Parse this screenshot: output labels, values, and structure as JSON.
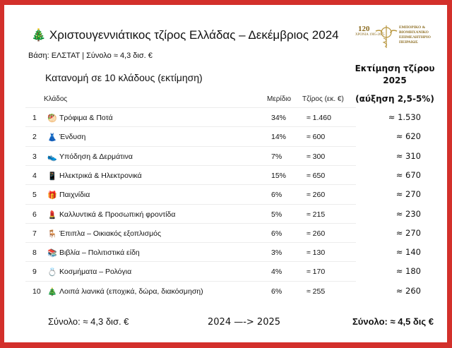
{
  "header": {
    "title_icon": "christmas-tree-icon",
    "title": "Χριστουγεννιάτικος τζίρος Ελλάδας – Δεκέμβριος 2024",
    "basis": "Βάση: ΕΛΣΤΑΤ | Σύνολο ≈ 4,3 δισ. €",
    "subtitle": "Κατανομή σε 10 κλάδους (εκτίμηση)"
  },
  "logo": {
    "number": "120",
    "years": "ΧΡΟΝΙΑ 1905-2025",
    "name": "ΕΜΠΟΡΙΚΟ & ΒΙΟΜΗΧΑΝΙΚΟ ΕΠΙΜΕΛΗΤΗΡΙΟ ΠΕΙΡΑΙΩΣ"
  },
  "columns": {
    "sector": "Κλάδος",
    "share": "Μερίδιο",
    "turnover": "Τζίρος (εκ. €)",
    "estimate_line1": "Εκτίμηση τζίρου",
    "estimate_line2": "2025",
    "estimate_growth": "(αύξηση 2,5-5%)"
  },
  "rows": [
    {
      "n": "1",
      "icon": "🥙",
      "icon_name": "food-icon",
      "name": "Τρόφιμα & Ποτά",
      "share": "34%",
      "turnover": "≈ 1.460",
      "estimate": "≈ 1.530"
    },
    {
      "n": "2",
      "icon": "👗",
      "icon_name": "dress-icon",
      "name": "Ένδυση",
      "share": "14%",
      "turnover": "≈ 600",
      "estimate": "≈ 620"
    },
    {
      "n": "3",
      "icon": "👟",
      "icon_name": "shoe-icon",
      "name": "Υπόδηση & Δερμάτινα",
      "share": "7%",
      "turnover": "≈ 300",
      "estimate": "≈ 310"
    },
    {
      "n": "4",
      "icon": "📱",
      "icon_name": "phone-icon",
      "name": "Ηλεκτρικά & Ηλεκτρονικά",
      "share": "15%",
      "turnover": "≈ 650",
      "estimate": "≈ 670"
    },
    {
      "n": "5",
      "icon": "🎁",
      "icon_name": "gift-icon",
      "name": "Παιχνίδια",
      "share": "6%",
      "turnover": "≈ 260",
      "estimate": "≈ 270"
    },
    {
      "n": "6",
      "icon": "💄",
      "icon_name": "lipstick-icon",
      "name": "Καλλυντικά & Προσωπική φροντίδα",
      "share": "5%",
      "turnover": "≈ 215",
      "estimate": "≈ 230"
    },
    {
      "n": "7",
      "icon": "🪑",
      "icon_name": "chair-icon",
      "name": "Έπιπλα – Οικιακός εξοπλισμός",
      "share": "6%",
      "turnover": "≈ 260",
      "estimate": "≈ 270"
    },
    {
      "n": "8",
      "icon": "📚",
      "icon_name": "books-icon",
      "name": "Βιβλία – Πολιτιστικά είδη",
      "share": "3%",
      "turnover": "≈ 130",
      "estimate": "≈ 140"
    },
    {
      "n": "9",
      "icon": "💍",
      "icon_name": "ring-icon",
      "name": "Κοσμήματα – Ρολόγια",
      "share": "4%",
      "turnover": "≈ 170",
      "estimate": "≈ 180"
    },
    {
      "n": "10",
      "icon": "🎄",
      "icon_name": "christmas-tree-icon",
      "name": "Λοιπά λιανικά (εποχικά, δώρα, διακόσμηση)",
      "share": "6%",
      "turnover": "≈ 255",
      "estimate": "≈ 260"
    }
  ],
  "footer": {
    "total_2024": "Σύνολο: ≈ 4,3 δισ. €",
    "arrow": "2024 —-> 2025",
    "total_2025": "Σύνολο: ≈ 4,5 δις €"
  },
  "colors": {
    "frame": "#d3302b",
    "logo_gold": "#8a6a1e"
  }
}
